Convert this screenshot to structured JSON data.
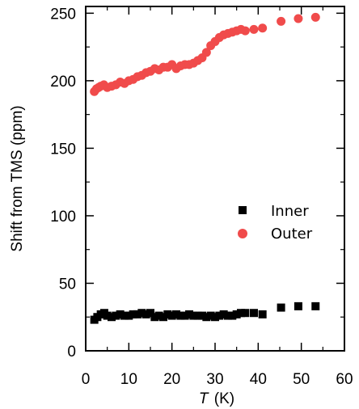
{
  "chart_data": {
    "type": "scatter",
    "xlabel": "T",
    "xlabel_unit": "(K)",
    "ylabel": "Shift from TMS (ppm)",
    "xlim": [
      0,
      60
    ],
    "ylim": [
      0,
      255
    ],
    "xticks": [
      "0",
      "10",
      "20",
      "30",
      "40",
      "50",
      "60"
    ],
    "yticks": [
      "0",
      "50",
      "100",
      "150",
      "200",
      "250"
    ],
    "legend_position": "center-right",
    "series": [
      {
        "name": "Inner",
        "marker": "square",
        "color": "#000000",
        "x": [
          2.0,
          2.7,
          3.5,
          4.3,
          5.0,
          6.0,
          7.0,
          8.0,
          9.0,
          10.0,
          11.0,
          12.0,
          13.0,
          14.0,
          15.0,
          16.0,
          17.0,
          18.0,
          19.0,
          20.0,
          21.0,
          22.0,
          23.0,
          24.0,
          25.0,
          26.0,
          27.0,
          28.0,
          29.0,
          30.0,
          31.0,
          32.0,
          33.0,
          34.0,
          35.0,
          36.0,
          37.0,
          39.0,
          41.0,
          45.3,
          49.3,
          53.3
        ],
        "y": [
          23,
          25,
          27,
          28,
          26,
          25,
          26,
          27,
          26,
          26,
          27,
          27,
          28,
          27,
          28,
          25,
          26,
          25,
          27,
          26,
          27,
          26,
          26,
          27,
          26,
          26,
          26,
          25,
          26,
          25,
          26,
          27,
          26,
          26,
          27,
          28,
          28,
          28,
          27,
          32,
          33,
          33
        ]
      },
      {
        "name": "Outer",
        "marker": "circle",
        "color": "#f04b4b",
        "x": [
          2.0,
          2.5,
          3.0,
          3.5,
          4.2,
          5.0,
          6.0,
          7.0,
          8.0,
          9.0,
          10.0,
          11.0,
          12.0,
          13.0,
          14.0,
          15.0,
          16.0,
          17.0,
          18.0,
          19.0,
          20.0,
          21.0,
          22.0,
          23.0,
          24.0,
          25.0,
          26.0,
          27.0,
          28.0,
          29.0,
          30.0,
          31.0,
          32.0,
          33.0,
          34.0,
          35.0,
          36.0,
          37.0,
          39.0,
          41.0,
          45.3,
          49.3,
          53.3
        ],
        "y": [
          192,
          194,
          195,
          196,
          197,
          195,
          196,
          197,
          199,
          198,
          200,
          201,
          203,
          204,
          206,
          207,
          209,
          208,
          210,
          210,
          212,
          209,
          211,
          212,
          212,
          213,
          215,
          217,
          221,
          226,
          229,
          232,
          234,
          235,
          236,
          237,
          238,
          237,
          238,
          239,
          244,
          246,
          247
        ]
      }
    ]
  }
}
